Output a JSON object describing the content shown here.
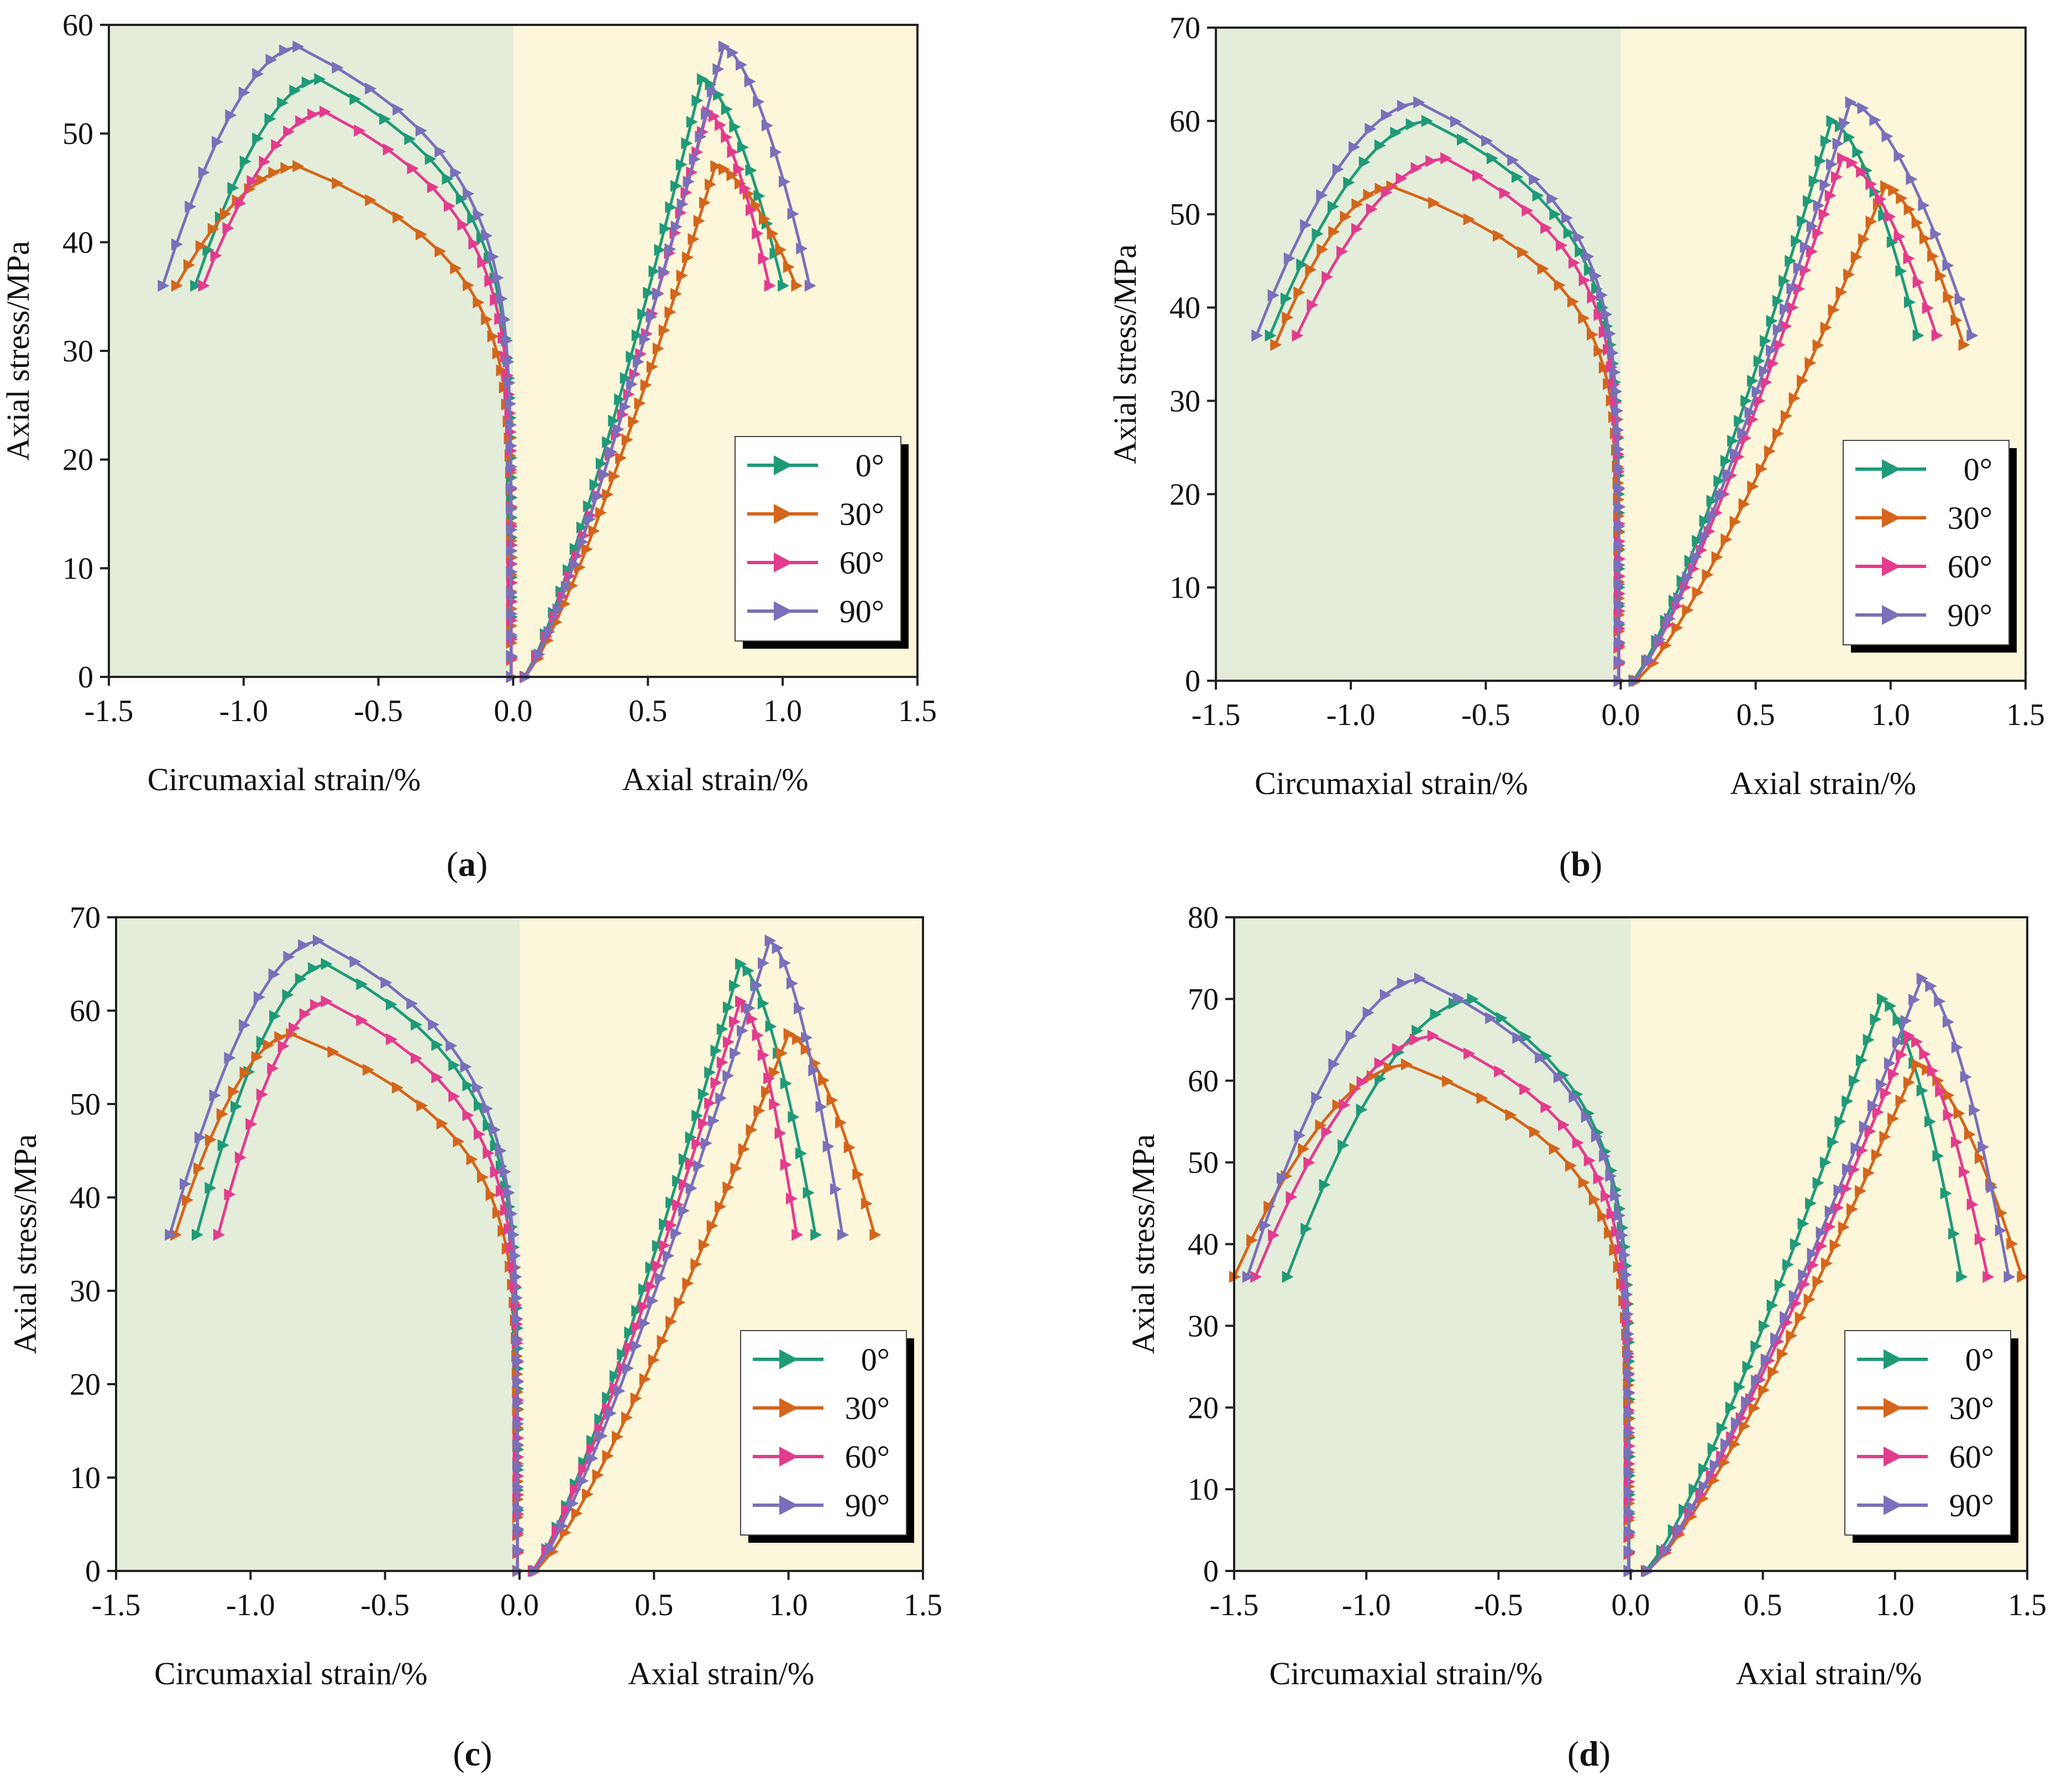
{
  "figure": {
    "colors": {
      "left_bg": "#e3edda",
      "right_bg": "#fcf6da",
      "0°": "#1f9a78",
      "30°": "#d4651b",
      "60°": "#e33b8e",
      "90°": "#7a6fba"
    },
    "marker": "right-triangle"
  },
  "chart_data": [
    {
      "type": "line",
      "panel": "(a)",
      "caption_letter": "a",
      "ylabel": "Axial stress/MPa",
      "xlabel_left": "Circumaxial strain/%",
      "xlabel_right": "Axial strain/%",
      "xlim": [
        -1.5,
        1.5
      ],
      "ylim": [
        0,
        60
      ],
      "xticks": [
        -1.5,
        -1.0,
        -0.5,
        0.0,
        0.5,
        1.0,
        1.5
      ],
      "xtick_labels": [
        "-1.5",
        "-1.0",
        "-0.5",
        "0.0",
        "0.5",
        "1.0",
        "1.5"
      ],
      "yticks": [
        0,
        10,
        20,
        30,
        40,
        50,
        60
      ],
      "ytick_labels": [
        "0",
        "10",
        "20",
        "30",
        "40",
        "50",
        "60"
      ],
      "legend": [
        "0°",
        "30°",
        "60°",
        "90°"
      ],
      "legend_position": "lower-right",
      "series": [
        {
          "name": "0°",
          "peak_stress": 55,
          "peak_axial": 0.7,
          "peak_circ": -0.72,
          "end_stress": 36,
          "end_axial": 1.0,
          "end_circ": -1.18
        },
        {
          "name": "30°",
          "peak_stress": 47,
          "peak_axial": 0.75,
          "peak_circ": -0.8,
          "end_stress": 36,
          "end_axial": 1.05,
          "end_circ": -1.25
        },
        {
          "name": "60°",
          "peak_stress": 52,
          "peak_axial": 0.72,
          "peak_circ": -0.7,
          "end_stress": 36,
          "end_axial": 0.95,
          "end_circ": -1.15
        },
        {
          "name": "90°",
          "peak_stress": 58,
          "peak_axial": 0.78,
          "peak_circ": -0.8,
          "end_stress": 36,
          "end_axial": 1.1,
          "end_circ": -1.3
        }
      ]
    },
    {
      "type": "line",
      "panel": "(b)",
      "caption_letter": "b",
      "ylabel": "Axial stress/MPa",
      "xlabel_left": "Circumaxial strain/%",
      "xlabel_right": "Axial strain/%",
      "xlim": [
        -1.5,
        1.5
      ],
      "ylim": [
        0,
        70
      ],
      "xticks": [
        -1.5,
        -1.0,
        -0.5,
        0.0,
        0.5,
        1.0,
        1.5
      ],
      "xtick_labels": [
        "-1.5",
        "-1.0",
        "-0.5",
        "0.0",
        "0.5",
        "1.0",
        "1.5"
      ],
      "yticks": [
        0,
        10,
        20,
        30,
        40,
        50,
        60,
        70
      ],
      "ytick_labels": [
        "0",
        "10",
        "20",
        "30",
        "40",
        "50",
        "60",
        "70"
      ],
      "legend": [
        "0°",
        "30°",
        "60°",
        "90°"
      ],
      "legend_position": "lower-right",
      "series": [
        {
          "name": "0°",
          "peak_stress": 60,
          "peak_axial": 0.78,
          "peak_circ": -0.72,
          "end_stress": 37,
          "end_axial": 1.1,
          "end_circ": -1.3
        },
        {
          "name": "30°",
          "peak_stress": 53,
          "peak_axial": 0.98,
          "peak_circ": -0.85,
          "end_stress": 36,
          "end_axial": 1.27,
          "end_circ": -1.28
        },
        {
          "name": "60°",
          "peak_stress": 56,
          "peak_axial": 0.82,
          "peak_circ": -0.65,
          "end_stress": 37,
          "end_axial": 1.17,
          "end_circ": -1.2
        },
        {
          "name": "90°",
          "peak_stress": 62,
          "peak_axial": 0.85,
          "peak_circ": -0.75,
          "end_stress": 37,
          "end_axial": 1.3,
          "end_circ": -1.35
        }
      ]
    },
    {
      "type": "line",
      "panel": "(c)",
      "caption_letter": "c",
      "ylabel": "Axial stress/MPa",
      "xlabel_left": "Circumaxial  strain/%",
      "xlabel_right": "Axial strain/%",
      "xlim": [
        -1.5,
        1.5
      ],
      "ylim": [
        0,
        70
      ],
      "xticks": [
        -1.5,
        -1.0,
        -0.5,
        0.0,
        0.5,
        1.0,
        1.5
      ],
      "xtick_labels": [
        "-1.5",
        "-1.0",
        "-0.5",
        "0.0",
        "0.5",
        "1.0",
        "1.5"
      ],
      "yticks": [
        0,
        10,
        20,
        30,
        40,
        50,
        60,
        70
      ],
      "ytick_labels": [
        "0",
        "10",
        "20",
        "30",
        "40",
        "50",
        "60",
        "70"
      ],
      "legend": [
        "0°",
        "30°",
        "60°",
        "90°"
      ],
      "legend_position": "lower-right",
      "series": [
        {
          "name": "0°",
          "peak_stress": 65,
          "peak_axial": 0.82,
          "peak_circ": -0.72,
          "end_stress": 36,
          "end_axial": 1.1,
          "end_circ": -1.2
        },
        {
          "name": "30°",
          "peak_stress": 57.5,
          "peak_axial": 1.0,
          "peak_circ": -0.85,
          "end_stress": 36,
          "end_axial": 1.32,
          "end_circ": -1.28
        },
        {
          "name": "60°",
          "peak_stress": 61,
          "peak_axial": 0.82,
          "peak_circ": -0.72,
          "end_stress": 36,
          "end_axial": 1.03,
          "end_circ": -1.12
        },
        {
          "name": "90°",
          "peak_stress": 67.5,
          "peak_axial": 0.93,
          "peak_circ": -0.75,
          "end_stress": 36,
          "end_axial": 1.2,
          "end_circ": -1.3
        }
      ]
    },
    {
      "type": "line",
      "panel": "(d)",
      "caption_letter": "d",
      "ylabel": "Axial stress/MPa",
      "xlabel_left": "Circumaxial  strain/%",
      "xlabel_right": "Axial strain/%",
      "xlim": [
        -1.5,
        1.5
      ],
      "ylim": [
        0,
        80
      ],
      "xticks": [
        -1.5,
        -1.0,
        -0.5,
        0.0,
        0.5,
        1.0,
        1.5
      ],
      "xtick_labels": [
        "-1.5",
        "-1.0",
        "-0.5",
        "0.0",
        "0.5",
        "1.0",
        "1.5"
      ],
      "yticks": [
        0,
        10,
        20,
        30,
        40,
        50,
        60,
        70,
        80
      ],
      "ytick_labels": [
        "0",
        "10",
        "20",
        "30",
        "40",
        "50",
        "60",
        "70",
        "80"
      ],
      "legend": [
        "0°",
        "30°",
        "60°",
        "90°"
      ],
      "legend_position": "lower-right",
      "series": [
        {
          "name": "0°",
          "peak_stress": 70,
          "peak_axial": 0.95,
          "peak_circ": -0.6,
          "end_stress": 36,
          "end_axial": 1.25,
          "end_circ": -1.3
        },
        {
          "name": "30°",
          "peak_stress": 62,
          "peak_axial": 1.08,
          "peak_circ": -0.85,
          "end_stress": 36,
          "end_axial": 1.48,
          "end_circ": -1.5
        },
        {
          "name": "60°",
          "peak_stress": 65.5,
          "peak_axial": 1.05,
          "peak_circ": -0.75,
          "end_stress": 36,
          "end_axial": 1.35,
          "end_circ": -1.42
        },
        {
          "name": "90°",
          "peak_stress": 72.5,
          "peak_axial": 1.1,
          "peak_circ": -0.8,
          "end_stress": 36,
          "end_axial": 1.43,
          "end_circ": -1.45
        }
      ]
    }
  ]
}
